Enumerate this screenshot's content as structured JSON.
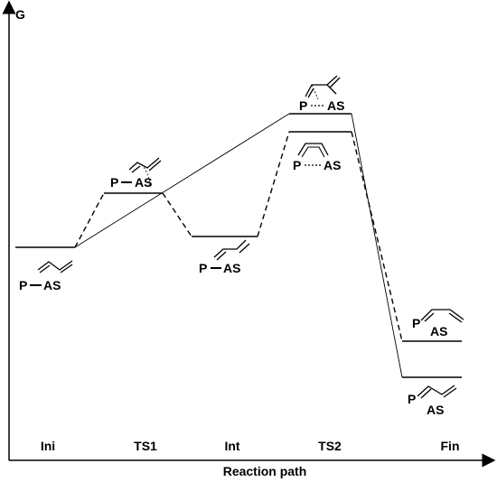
{
  "axis": {
    "y_label": "G",
    "x_label": "Reaction path"
  },
  "stages": [
    "Ini",
    "TS1",
    "Int",
    "TS2",
    "Fin"
  ],
  "labels": {
    "p": "P",
    "as": "AS",
    "p_as": "P",
    "dash": "—"
  },
  "colors": {
    "line": "#000000",
    "background": "#ffffff"
  }
}
